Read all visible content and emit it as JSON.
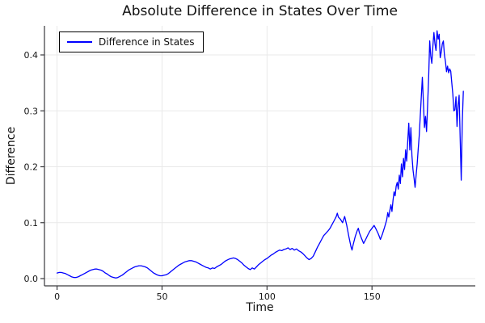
{
  "colors": {
    "line": "#0000ff",
    "grid": "#e9e9e9",
    "spine": "#3a3a3e",
    "text": "#151515",
    "background": "#ffffff",
    "legend_border": "#000000"
  },
  "chart_data": {
    "type": "line",
    "title": "Absolute Difference in States Over Time",
    "xlabel": "Time",
    "ylabel": "Difference",
    "xlim": [
      -6,
      199.2
    ],
    "ylim": [
      -0.013,
      0.452
    ],
    "grid": true,
    "legend_position": "top-left",
    "xticks": [
      0,
      50,
      100,
      150
    ],
    "xtick_labels": [
      "0",
      "50",
      "100",
      "150"
    ],
    "yticks": [
      0,
      0.1,
      0.2,
      0.3,
      0.4
    ],
    "ytick_labels": [
      "0.0",
      "0.1",
      "0.2",
      "0.3",
      "0.4"
    ],
    "series": [
      {
        "name": "Difference in States",
        "color": "#0000ff",
        "points": [
          [
            0,
            0.01
          ],
          [
            1,
            0.011
          ],
          [
            2,
            0.011
          ],
          [
            3,
            0.01
          ],
          [
            4,
            0.009
          ],
          [
            5,
            0.007
          ],
          [
            6,
            0.005
          ],
          [
            7,
            0.003
          ],
          [
            8,
            0.002
          ],
          [
            9,
            0.002
          ],
          [
            10,
            0.003
          ],
          [
            11,
            0.005
          ],
          [
            12,
            0.007
          ],
          [
            13,
            0.009
          ],
          [
            14,
            0.011
          ],
          [
            15,
            0.013
          ],
          [
            16,
            0.015
          ],
          [
            17,
            0.016
          ],
          [
            18,
            0.017
          ],
          [
            19,
            0.017
          ],
          [
            20,
            0.016
          ],
          [
            21,
            0.015
          ],
          [
            22,
            0.013
          ],
          [
            23,
            0.01
          ],
          [
            24,
            0.008
          ],
          [
            25,
            0.005
          ],
          [
            26,
            0.003
          ],
          [
            27,
            0.002
          ],
          [
            28,
            0.001
          ],
          [
            29,
            0.002
          ],
          [
            30,
            0.004
          ],
          [
            31,
            0.006
          ],
          [
            32,
            0.009
          ],
          [
            33,
            0.012
          ],
          [
            34,
            0.015
          ],
          [
            35,
            0.017
          ],
          [
            36,
            0.019
          ],
          [
            37,
            0.021
          ],
          [
            38,
            0.022
          ],
          [
            39,
            0.023
          ],
          [
            40,
            0.023
          ],
          [
            41,
            0.022
          ],
          [
            42,
            0.021
          ],
          [
            43,
            0.019
          ],
          [
            44,
            0.016
          ],
          [
            45,
            0.013
          ],
          [
            46,
            0.01
          ],
          [
            47,
            0.008
          ],
          [
            48,
            0.006
          ],
          [
            49,
            0.005
          ],
          [
            50,
            0.005
          ],
          [
            51,
            0.006
          ],
          [
            52,
            0.007
          ],
          [
            53,
            0.009
          ],
          [
            54,
            0.012
          ],
          [
            55,
            0.015
          ],
          [
            56,
            0.018
          ],
          [
            57,
            0.021
          ],
          [
            58,
            0.024
          ],
          [
            59,
            0.026
          ],
          [
            60,
            0.028
          ],
          [
            61,
            0.03
          ],
          [
            62,
            0.031
          ],
          [
            63,
            0.032
          ],
          [
            64,
            0.032
          ],
          [
            65,
            0.031
          ],
          [
            66,
            0.03
          ],
          [
            67,
            0.028
          ],
          [
            68,
            0.026
          ],
          [
            69,
            0.024
          ],
          [
            70,
            0.022
          ],
          [
            71,
            0.02
          ],
          [
            72,
            0.019
          ],
          [
            73,
            0.017
          ],
          [
            74,
            0.019
          ],
          [
            75,
            0.018
          ],
          [
            76,
            0.021
          ],
          [
            77,
            0.023
          ],
          [
            78,
            0.025
          ],
          [
            79,
            0.028
          ],
          [
            80,
            0.031
          ],
          [
            81,
            0.033
          ],
          [
            82,
            0.035
          ],
          [
            83,
            0.036
          ],
          [
            84,
            0.037
          ],
          [
            85,
            0.036
          ],
          [
            86,
            0.034
          ],
          [
            87,
            0.031
          ],
          [
            88,
            0.028
          ],
          [
            89,
            0.024
          ],
          [
            90,
            0.021
          ],
          [
            91,
            0.018
          ],
          [
            92,
            0.016
          ],
          [
            93,
            0.019
          ],
          [
            94,
            0.017
          ],
          [
            95,
            0.021
          ],
          [
            96,
            0.025
          ],
          [
            97,
            0.028
          ],
          [
            98,
            0.031
          ],
          [
            99,
            0.034
          ],
          [
            100,
            0.036
          ],
          [
            101,
            0.039
          ],
          [
            102,
            0.042
          ],
          [
            103,
            0.044
          ],
          [
            104,
            0.047
          ],
          [
            105,
            0.049
          ],
          [
            106,
            0.051
          ],
          [
            107,
            0.05
          ],
          [
            108,
            0.052
          ],
          [
            109,
            0.053
          ],
          [
            110,
            0.055
          ],
          [
            111,
            0.052
          ],
          [
            112,
            0.054
          ],
          [
            113,
            0.051
          ],
          [
            114,
            0.053
          ],
          [
            115,
            0.05
          ],
          [
            116,
            0.048
          ],
          [
            117,
            0.045
          ],
          [
            118,
            0.041
          ],
          [
            119,
            0.037
          ],
          [
            120,
            0.034
          ],
          [
            121,
            0.036
          ],
          [
            122,
            0.04
          ],
          [
            123,
            0.048
          ],
          [
            124,
            0.056
          ],
          [
            125,
            0.063
          ],
          [
            126,
            0.07
          ],
          [
            127,
            0.077
          ],
          [
            128,
            0.081
          ],
          [
            129,
            0.085
          ],
          [
            130,
            0.09
          ],
          [
            131,
            0.097
          ],
          [
            132,
            0.104
          ],
          [
            133,
            0.111
          ],
          [
            133.5,
            0.117
          ],
          [
            134,
            0.11
          ],
          [
            135,
            0.106
          ],
          [
            136,
            0.1
          ],
          [
            137,
            0.111
          ],
          [
            138,
            0.095
          ],
          [
            139,
            0.075
          ],
          [
            140,
            0.057
          ],
          [
            140.5,
            0.051
          ],
          [
            141,
            0.06
          ],
          [
            142,
            0.075
          ],
          [
            143,
            0.086
          ],
          [
            143.5,
            0.09
          ],
          [
            144,
            0.082
          ],
          [
            145,
            0.072
          ],
          [
            146,
            0.063
          ],
          [
            147,
            0.07
          ],
          [
            148,
            0.078
          ],
          [
            149,
            0.085
          ],
          [
            150,
            0.09
          ],
          [
            151,
            0.095
          ],
          [
            152,
            0.088
          ],
          [
            153,
            0.08
          ],
          [
            154,
            0.07
          ],
          [
            155,
            0.08
          ],
          [
            156,
            0.092
          ],
          [
            157,
            0.105
          ],
          [
            157.5,
            0.118
          ],
          [
            158,
            0.11
          ],
          [
            158.5,
            0.122
          ],
          [
            159,
            0.132
          ],
          [
            159.5,
            0.12
          ],
          [
            160,
            0.14
          ],
          [
            160.5,
            0.155
          ],
          [
            161,
            0.148
          ],
          [
            161.5,
            0.165
          ],
          [
            162,
            0.172
          ],
          [
            162.5,
            0.16
          ],
          [
            163,
            0.185
          ],
          [
            163.5,
            0.17
          ],
          [
            164,
            0.205
          ],
          [
            164.5,
            0.182
          ],
          [
            165,
            0.215
          ],
          [
            165.5,
            0.195
          ],
          [
            166,
            0.23
          ],
          [
            166.5,
            0.21
          ],
          [
            167,
            0.245
          ],
          [
            167.5,
            0.278
          ],
          [
            168,
            0.23
          ],
          [
            168.5,
            0.27
          ],
          [
            169,
            0.22
          ],
          [
            169.5,
            0.195
          ],
          [
            170,
            0.18
          ],
          [
            170.5,
            0.163
          ],
          [
            171,
            0.185
          ],
          [
            171.5,
            0.205
          ],
          [
            172,
            0.23
          ],
          [
            172.5,
            0.255
          ],
          [
            173,
            0.29
          ],
          [
            173.5,
            0.325
          ],
          [
            174,
            0.36
          ],
          [
            174.5,
            0.315
          ],
          [
            175,
            0.27
          ],
          [
            175.5,
            0.29
          ],
          [
            176,
            0.263
          ],
          [
            176.5,
            0.31
          ],
          [
            177,
            0.36
          ],
          [
            177.5,
            0.425
          ],
          [
            178,
            0.398
          ],
          [
            178.5,
            0.385
          ],
          [
            179,
            0.415
          ],
          [
            179.5,
            0.44
          ],
          [
            180,
            0.42
          ],
          [
            180.5,
            0.408
          ],
          [
            181,
            0.443
          ],
          [
            181.5,
            0.428
          ],
          [
            182,
            0.437
          ],
          [
            182.5,
            0.395
          ],
          [
            183,
            0.405
          ],
          [
            183.5,
            0.42
          ],
          [
            184,
            0.425
          ],
          [
            184.5,
            0.4
          ],
          [
            185,
            0.388
          ],
          [
            185.5,
            0.37
          ],
          [
            186,
            0.38
          ],
          [
            186.5,
            0.368
          ],
          [
            187,
            0.375
          ],
          [
            187.5,
            0.371
          ],
          [
            188,
            0.35
          ],
          [
            188.5,
            0.33
          ],
          [
            189,
            0.3
          ],
          [
            189.5,
            0.302
          ],
          [
            190,
            0.325
          ],
          [
            190.5,
            0.272
          ],
          [
            191,
            0.31
          ],
          [
            191.5,
            0.328
          ],
          [
            192,
            0.25
          ],
          [
            192.5,
            0.176
          ],
          [
            193,
            0.28
          ],
          [
            193.5,
            0.335
          ]
        ]
      }
    ]
  }
}
